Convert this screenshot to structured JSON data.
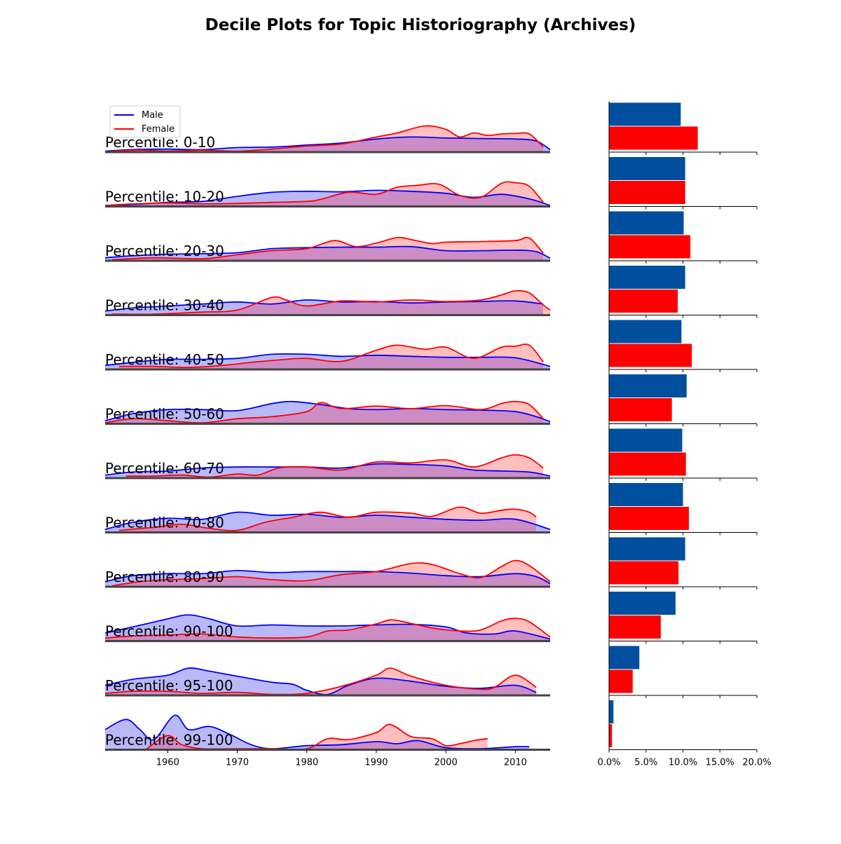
{
  "chart_data": {
    "type": "area",
    "title": "Decile Plots for Topic Historiography (Archives)",
    "x_ticks": [
      1960,
      1970,
      1980,
      1990,
      2000,
      2010
    ],
    "x_range": [
      1951,
      2015
    ],
    "legend": {
      "position": "top-left",
      "entries": [
        "Male",
        "Female"
      ]
    },
    "colors": {
      "male_line": "#0000ff",
      "male_fill": "#b9b9f8",
      "female_line": "#ff0000",
      "female_fill": "#ffbfbf",
      "overlap_fill": "#cc8cc4",
      "baseline": "#444444",
      "male_bar": "#004f9e",
      "female_bar": "#ff0000"
    },
    "bar_axis": {
      "range": [
        0,
        20
      ],
      "ticks": [
        "0.0%",
        "5.0%",
        "10.0%",
        "15.0%",
        "20.0%"
      ],
      "tick_values": [
        0,
        5,
        10,
        15,
        20
      ]
    },
    "panels": [
      {
        "label": "Percentile: 0-10",
        "male": {
          "x": [
            1951,
            1955,
            1960,
            1965,
            1970,
            1975,
            1980,
            1985,
            1990,
            1995,
            2000,
            2005,
            2010,
            2013,
            2015
          ],
          "y": [
            0.02,
            0.05,
            0.06,
            0.05,
            0.09,
            0.1,
            0.14,
            0.18,
            0.26,
            0.3,
            0.28,
            0.27,
            0.26,
            0.22,
            0.05
          ]
        },
        "female": {
          "x": [
            1952,
            1956,
            1960,
            1965,
            1970,
            1975,
            1980,
            1985,
            1990,
            1993,
            1997,
            2000,
            2002,
            2004,
            2006,
            2008,
            2010,
            2012,
            2014
          ],
          "y": [
            0.02,
            0.04,
            0.02,
            0.04,
            0.02,
            0.06,
            0.12,
            0.16,
            0.3,
            0.38,
            0.52,
            0.45,
            0.3,
            0.38,
            0.33,
            0.36,
            0.37,
            0.36,
            0.1
          ]
        },
        "bar": {
          "male": 9.7,
          "female": 12.0
        }
      },
      {
        "label": "Percentile: 10-20",
        "male": {
          "x": [
            1951,
            1955,
            1960,
            1965,
            1970,
            1975,
            1980,
            1985,
            1990,
            1995,
            2000,
            2004,
            2008,
            2012,
            2015
          ],
          "y": [
            0.02,
            0.04,
            0.08,
            0.1,
            0.2,
            0.28,
            0.3,
            0.29,
            0.32,
            0.3,
            0.26,
            0.18,
            0.24,
            0.15,
            0.02
          ]
        },
        "female": {
          "x": [
            1951,
            1955,
            1960,
            1965,
            1970,
            1975,
            1980,
            1982,
            1986,
            1990,
            1993,
            1996,
            1999,
            2002,
            2005,
            2008,
            2010,
            2012,
            2014
          ],
          "y": [
            0.02,
            0.05,
            0.07,
            0.05,
            0.06,
            0.08,
            0.1,
            0.14,
            0.28,
            0.24,
            0.38,
            0.42,
            0.44,
            0.22,
            0.18,
            0.46,
            0.47,
            0.4,
            0.08
          ]
        },
        "bar": {
          "male": 10.3,
          "female": 10.3
        }
      },
      {
        "label": "Percentile: 20-30",
        "male": {
          "x": [
            1951,
            1955,
            1960,
            1965,
            1970,
            1975,
            1980,
            1985,
            1990,
            1995,
            2000,
            2005,
            2010,
            2013,
            2015
          ],
          "y": [
            0.06,
            0.1,
            0.13,
            0.14,
            0.16,
            0.24,
            0.26,
            0.27,
            0.27,
            0.28,
            0.2,
            0.2,
            0.21,
            0.18,
            0.05
          ]
        },
        "female": {
          "x": [
            1952,
            1958,
            1965,
            1970,
            1975,
            1980,
            1984,
            1987,
            1990,
            1993,
            1995,
            1998,
            2000,
            2005,
            2010,
            2012,
            2014
          ],
          "y": [
            0.02,
            0.06,
            0.04,
            0.12,
            0.2,
            0.24,
            0.4,
            0.28,
            0.35,
            0.46,
            0.42,
            0.34,
            0.37,
            0.38,
            0.4,
            0.45,
            0.15
          ]
        },
        "bar": {
          "male": 10.1,
          "female": 11.0
        }
      },
      {
        "label": "Percentile: 30-40",
        "male": {
          "x": [
            1951,
            1955,
            1960,
            1965,
            1970,
            1975,
            1980,
            1985,
            1990,
            1995,
            2000,
            2005,
            2010,
            2014
          ],
          "y": [
            0.08,
            0.14,
            0.18,
            0.22,
            0.26,
            0.22,
            0.3,
            0.26,
            0.27,
            0.24,
            0.26,
            0.27,
            0.28,
            0.22
          ]
        },
        "female": {
          "x": [
            1952,
            1958,
            1965,
            1970,
            1975,
            1977,
            1980,
            1985,
            1990,
            1995,
            2000,
            2005,
            2008,
            2010,
            2012,
            2014,
            2015
          ],
          "y": [
            0.02,
            0.02,
            0.06,
            0.1,
            0.35,
            0.3,
            0.18,
            0.28,
            0.26,
            0.3,
            0.27,
            0.3,
            0.4,
            0.48,
            0.44,
            0.2,
            0.1
          ]
        },
        "bar": {
          "male": 10.3,
          "female": 9.3
        }
      },
      {
        "label": "Percentile: 40-50",
        "male": {
          "x": [
            1951,
            1955,
            1960,
            1965,
            1970,
            1975,
            1980,
            1985,
            1990,
            1995,
            2000,
            2005,
            2010,
            2015
          ],
          "y": [
            0.08,
            0.14,
            0.2,
            0.2,
            0.22,
            0.3,
            0.3,
            0.26,
            0.28,
            0.26,
            0.24,
            0.24,
            0.23,
            0.06
          ]
        },
        "female": {
          "x": [
            1953,
            1958,
            1963,
            1968,
            1972,
            1977,
            1980,
            1985,
            1990,
            1993,
            1997,
            2000,
            2004,
            2008,
            2010,
            2012,
            2014
          ],
          "y": [
            0.06,
            0.06,
            0.04,
            0.08,
            0.14,
            0.2,
            0.22,
            0.16,
            0.38,
            0.48,
            0.4,
            0.44,
            0.22,
            0.44,
            0.46,
            0.48,
            0.15
          ]
        },
        "bar": {
          "male": 9.8,
          "female": 11.2
        }
      },
      {
        "label": "Percentile: 50-60",
        "male": {
          "x": [
            1951,
            1955,
            1960,
            1965,
            1970,
            1975,
            1978,
            1982,
            1986,
            1990,
            1995,
            2000,
            2005,
            2010,
            2013,
            2015
          ],
          "y": [
            0.06,
            0.2,
            0.28,
            0.28,
            0.26,
            0.4,
            0.44,
            0.38,
            0.3,
            0.28,
            0.3,
            0.28,
            0.27,
            0.24,
            0.14,
            0.04
          ]
        },
        "female": {
          "x": [
            1951,
            1955,
            1960,
            1965,
            1970,
            1975,
            1980,
            1982,
            1985,
            1990,
            1995,
            2000,
            2005,
            2008,
            2010,
            2012,
            2014
          ],
          "y": [
            0.02,
            0.1,
            0.06,
            0.02,
            0.1,
            0.14,
            0.24,
            0.42,
            0.3,
            0.35,
            0.3,
            0.36,
            0.28,
            0.4,
            0.44,
            0.38,
            0.1
          ]
        },
        "bar": {
          "male": 10.5,
          "female": 8.5
        }
      },
      {
        "label": "Percentile: 60-70",
        "male": {
          "x": [
            1951,
            1955,
            1960,
            1965,
            1970,
            1975,
            1980,
            1985,
            1990,
            1995,
            2000,
            2004,
            2008,
            2012,
            2015
          ],
          "y": [
            0.06,
            0.12,
            0.14,
            0.2,
            0.22,
            0.22,
            0.22,
            0.2,
            0.28,
            0.27,
            0.24,
            0.16,
            0.14,
            0.12,
            0.04
          ]
        },
        "female": {
          "x": [
            1954,
            1958,
            1962,
            1966,
            1970,
            1973,
            1976,
            1980,
            1985,
            1990,
            1995,
            2000,
            2004,
            2008,
            2010,
            2012,
            2014
          ],
          "y": [
            0.04,
            0.04,
            0.06,
            0.02,
            0.08,
            0.06,
            0.2,
            0.22,
            0.16,
            0.32,
            0.3,
            0.36,
            0.22,
            0.4,
            0.46,
            0.4,
            0.2
          ]
        },
        "bar": {
          "male": 9.9,
          "female": 10.4
        }
      },
      {
        "label": "Percentile: 70-80",
        "male": {
          "x": [
            1951,
            1955,
            1960,
            1965,
            1970,
            1975,
            1980,
            1985,
            1990,
            1995,
            2000,
            2005,
            2010,
            2015
          ],
          "y": [
            0.06,
            0.2,
            0.28,
            0.26,
            0.4,
            0.34,
            0.36,
            0.3,
            0.34,
            0.3,
            0.26,
            0.24,
            0.26,
            0.06
          ]
        },
        "female": {
          "x": [
            1953,
            1958,
            1962,
            1966,
            1970,
            1974,
            1978,
            1982,
            1986,
            1990,
            1995,
            1998,
            2002,
            2005,
            2008,
            2010,
            2012,
            2013
          ],
          "y": [
            0.04,
            0.1,
            0.16,
            0.08,
            0.04,
            0.2,
            0.3,
            0.4,
            0.3,
            0.4,
            0.38,
            0.32,
            0.5,
            0.38,
            0.44,
            0.46,
            0.4,
            0.3
          ]
        },
        "bar": {
          "male": 10.0,
          "female": 10.8
        }
      },
      {
        "label": "Percentile: 80-90",
        "male": {
          "x": [
            1951,
            1955,
            1960,
            1965,
            1970,
            1975,
            1980,
            1985,
            1990,
            1995,
            2000,
            2005,
            2010,
            2013,
            2015
          ],
          "y": [
            0.1,
            0.22,
            0.26,
            0.26,
            0.32,
            0.28,
            0.3,
            0.3,
            0.3,
            0.27,
            0.22,
            0.2,
            0.26,
            0.2,
            0.06
          ]
        },
        "female": {
          "x": [
            1952,
            1956,
            1960,
            1965,
            1970,
            1975,
            1980,
            1985,
            1990,
            1995,
            1998,
            2002,
            2005,
            2008,
            2010,
            2012,
            2015
          ],
          "y": [
            0.02,
            0.1,
            0.14,
            0.16,
            0.2,
            0.14,
            0.12,
            0.24,
            0.3,
            0.46,
            0.44,
            0.26,
            0.18,
            0.4,
            0.52,
            0.42,
            0.1
          ]
        },
        "bar": {
          "male": 10.3,
          "female": 9.4
        }
      },
      {
        "label": "Percentile: 90-100",
        "male": {
          "x": [
            1951,
            1955,
            1960,
            1963,
            1966,
            1970,
            1975,
            1980,
            1985,
            1990,
            1995,
            2000,
            2003,
            2007,
            2010,
            2015
          ],
          "y": [
            0.16,
            0.28,
            0.44,
            0.52,
            0.44,
            0.3,
            0.32,
            0.3,
            0.3,
            0.32,
            0.33,
            0.28,
            0.16,
            0.14,
            0.2,
            0.04
          ]
        },
        "female": {
          "x": [
            1951,
            1955,
            1960,
            1965,
            1970,
            1975,
            1980,
            1983,
            1986,
            1990,
            1992,
            1994,
            1998,
            2002,
            2005,
            2008,
            2010,
            2012,
            2015
          ],
          "y": [
            0.06,
            0.1,
            0.12,
            0.14,
            0.08,
            0.06,
            0.08,
            0.2,
            0.22,
            0.34,
            0.42,
            0.38,
            0.26,
            0.2,
            0.22,
            0.4,
            0.45,
            0.38,
            0.08
          ]
        },
        "bar": {
          "male": 9.0,
          "female": 7.0
        }
      },
      {
        "label": "Percentile: 95-100",
        "male": {
          "x": [
            1951,
            1955,
            1960,
            1963,
            1966,
            1970,
            1975,
            1978,
            1980,
            1983,
            1986,
            1990,
            1995,
            2000,
            2005,
            2010,
            2013
          ],
          "y": [
            0.2,
            0.32,
            0.4,
            0.54,
            0.48,
            0.38,
            0.26,
            0.22,
            0.1,
            0.02,
            0.2,
            0.34,
            0.28,
            0.18,
            0.14,
            0.2,
            0.06
          ]
        },
        "female": {
          "x": [
            1951,
            1955,
            1960,
            1965,
            1970,
            1975,
            1980,
            1985,
            1990,
            1992,
            1995,
            2000,
            2005,
            2007,
            2010,
            2013
          ],
          "y": [
            0.04,
            0.08,
            0.08,
            0.04,
            0.06,
            0.02,
            0.04,
            0.18,
            0.4,
            0.54,
            0.38,
            0.2,
            0.12,
            0.16,
            0.4,
            0.16
          ]
        },
        "bar": {
          "male": 4.1,
          "female": 3.2
        }
      },
      {
        "label": "Percentile: 99-100",
        "male": {
          "x": [
            1951,
            1954,
            1956,
            1958,
            1961,
            1963,
            1966,
            1969,
            1972,
            1975,
            1980,
            1985,
            1990,
            1993,
            1996,
            2000,
            2005,
            2010,
            2012
          ],
          "y": [
            0.4,
            0.6,
            0.4,
            0.2,
            0.68,
            0.4,
            0.46,
            0.3,
            0.1,
            0.02,
            0.08,
            0.1,
            0.16,
            0.12,
            0.18,
            0.04,
            0.02,
            0.06,
            0.06
          ]
        },
        "female": {
          "x": [
            1957,
            1960,
            1962,
            1965,
            1970,
            1975,
            1980,
            1983,
            1986,
            1990,
            1992,
            1995,
            1998,
            2000,
            2002,
            2004,
            2006
          ],
          "y": [
            0.02,
            0.28,
            0.1,
            0.02,
            0.02,
            0.02,
            0.02,
            0.22,
            0.2,
            0.34,
            0.5,
            0.26,
            0.22,
            0.08,
            0.12,
            0.18,
            0.22
          ]
        },
        "bar": {
          "male": 0.6,
          "female": 0.4
        }
      }
    ]
  }
}
